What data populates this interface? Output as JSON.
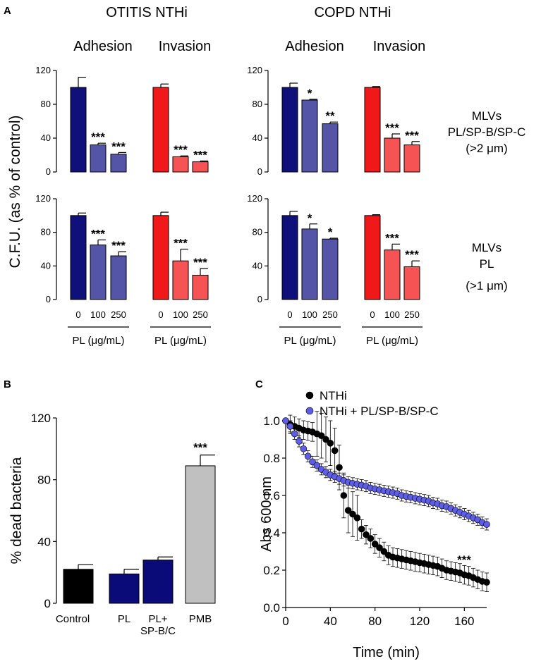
{
  "panel_a": {
    "label": "A",
    "ylabel": "C.F.U. (as % of control)",
    "strain_titles": [
      "OTITIS NTHi",
      "COPD NTHi"
    ],
    "group_titles": [
      "Adhesion",
      "Invasion"
    ],
    "dose_ticks": [
      "0",
      "100",
      "250"
    ],
    "dose_label": "PL (μg/mL)",
    "row_labels": [
      [
        "MLVs",
        "PL/SP-B/SP-C",
        "(>2 μm)"
      ],
      [
        "MLVs",
        "PL",
        "(>1 μm)"
      ]
    ],
    "y_ticks": [
      0,
      40,
      80,
      120
    ]
  },
  "panel_b": {
    "label": "B"
  },
  "panel_c": {
    "label": "C"
  },
  "colors": {
    "adhesion_control": "#10107a",
    "adhesion_treated": "#5555a8",
    "invasion_control": "#f01818",
    "invasion_treated": "#f65454",
    "pl_bar": "#0a0a78",
    "pmb_bar": "#c0c0c0",
    "black_bar": "#000000",
    "nthi": "#000000",
    "nthi_pl": "#5d5de8"
  },
  "chart_data": [
    {
      "type": "bar",
      "panel": "A",
      "strain": "OTITIS NTHi",
      "row": "MLVs PL/SP-B/SP-C (>2 μm)",
      "categories": [
        "0",
        "100",
        "250"
      ],
      "ylim": [
        0,
        120
      ],
      "series": [
        {
          "name": "Adhesion",
          "values": [
            100,
            32,
            21
          ],
          "errors": [
            12,
            2,
            2
          ],
          "significance": [
            "",
            "***",
            "***"
          ]
        },
        {
          "name": "Invasion",
          "values": [
            100,
            18,
            12
          ],
          "errors": [
            4,
            1,
            1
          ],
          "significance": [
            "",
            "***",
            "***"
          ]
        }
      ]
    },
    {
      "type": "bar",
      "panel": "A",
      "strain": "COPD NTHi",
      "row": "MLVs PL/SP-B/SP-C (>2 μm)",
      "categories": [
        "0",
        "100",
        "250"
      ],
      "ylim": [
        0,
        120
      ],
      "series": [
        {
          "name": "Adhesion",
          "values": [
            100,
            85,
            57
          ],
          "errors": [
            5,
            1,
            2
          ],
          "significance": [
            "",
            "*",
            "**"
          ]
        },
        {
          "name": "Invasion",
          "values": [
            100,
            40,
            32
          ],
          "errors": [
            1,
            5,
            4
          ],
          "significance": [
            "",
            "***",
            "***"
          ]
        }
      ]
    },
    {
      "type": "bar",
      "panel": "A",
      "strain": "OTITIS NTHi",
      "row": "MLVs PL (>1 μm)",
      "categories": [
        "0",
        "100",
        "250"
      ],
      "ylim": [
        0,
        120
      ],
      "series": [
        {
          "name": "Adhesion",
          "values": [
            100,
            65,
            52
          ],
          "errors": [
            3,
            6,
            5
          ],
          "significance": [
            "",
            "***",
            "***"
          ]
        },
        {
          "name": "Invasion",
          "values": [
            100,
            46,
            29
          ],
          "errors": [
            4,
            14,
            8
          ],
          "significance": [
            "",
            "***",
            "***"
          ]
        }
      ]
    },
    {
      "type": "bar",
      "panel": "A",
      "strain": "COPD NTHi",
      "row": "MLVs PL (>1 μm)",
      "categories": [
        "0",
        "100",
        "250"
      ],
      "ylim": [
        0,
        120
      ],
      "series": [
        {
          "name": "Adhesion",
          "values": [
            100,
            84,
            72
          ],
          "errors": [
            5,
            6,
            1
          ],
          "significance": [
            "",
            "*",
            "*"
          ]
        },
        {
          "name": "Invasion",
          "values": [
            100,
            59,
            39
          ],
          "errors": [
            1,
            7,
            7
          ],
          "significance": [
            "",
            "***",
            "***"
          ]
        }
      ]
    },
    {
      "type": "bar",
      "panel": "B",
      "categories": [
        "Control",
        "PL",
        "PL+\nSP-B/C",
        "PMB"
      ],
      "values": [
        22,
        19,
        28,
        89
      ],
      "errors": [
        3,
        3,
        2,
        7
      ],
      "significance": [
        "",
        "",
        "",
        "***"
      ],
      "ylabel": "% dead bacteria",
      "ylim": [
        0,
        120
      ],
      "yticks": [
        0,
        40,
        80,
        120
      ]
    },
    {
      "type": "scatter",
      "panel": "C",
      "xlabel": "Time (min)",
      "ylabel": "Abs 600 nm",
      "xlim": [
        0,
        180
      ],
      "ylim": [
        0,
        1.0
      ],
      "xticks": [
        0,
        40,
        80,
        120,
        160
      ],
      "yticks": [
        "0.0",
        "0.2",
        "0.4",
        "0.6",
        "0.8",
        "1.0"
      ],
      "annotation": "***",
      "series": [
        {
          "name": "NTHi",
          "points": [
            [
              0,
              1.0
            ],
            [
              4,
              0.98
            ],
            [
              8,
              0.97
            ],
            [
              12,
              0.96
            ],
            [
              16,
              0.95
            ],
            [
              20,
              0.945
            ],
            [
              24,
              0.94
            ],
            [
              28,
              0.93
            ],
            [
              32,
              0.92
            ],
            [
              36,
              0.9
            ],
            [
              40,
              0.88
            ],
            [
              44,
              0.84
            ],
            [
              48,
              0.75
            ],
            [
              52,
              0.6
            ],
            [
              56,
              0.52
            ],
            [
              60,
              0.5
            ],
            [
              64,
              0.48
            ],
            [
              68,
              0.42
            ],
            [
              72,
              0.39
            ],
            [
              76,
              0.37
            ],
            [
              80,
              0.34
            ],
            [
              84,
              0.32
            ],
            [
              88,
              0.3
            ],
            [
              92,
              0.28
            ],
            [
              96,
              0.27
            ],
            [
              100,
              0.265
            ],
            [
              104,
              0.26
            ],
            [
              108,
              0.255
            ],
            [
              112,
              0.25
            ],
            [
              116,
              0.245
            ],
            [
              120,
              0.24
            ],
            [
              124,
              0.235
            ],
            [
              128,
              0.23
            ],
            [
              132,
              0.225
            ],
            [
              136,
              0.22
            ],
            [
              140,
              0.21
            ],
            [
              144,
              0.2
            ],
            [
              148,
              0.195
            ],
            [
              152,
              0.19
            ],
            [
              156,
              0.185
            ],
            [
              160,
              0.175
            ],
            [
              164,
              0.17
            ],
            [
              168,
              0.16
            ],
            [
              172,
              0.15
            ],
            [
              176,
              0.14
            ],
            [
              180,
              0.135
            ]
          ],
          "error": 0.05
        },
        {
          "name": "NTHi + PL/SP-B/SP-C",
          "points": [
            [
              0,
              1.0
            ],
            [
              4,
              0.97
            ],
            [
              8,
              0.93
            ],
            [
              12,
              0.89
            ],
            [
              16,
              0.85
            ],
            [
              20,
              0.81
            ],
            [
              24,
              0.78
            ],
            [
              28,
              0.76
            ],
            [
              32,
              0.74
            ],
            [
              36,
              0.725
            ],
            [
              40,
              0.71
            ],
            [
              44,
              0.7
            ],
            [
              48,
              0.69
            ],
            [
              52,
              0.68
            ],
            [
              56,
              0.67
            ],
            [
              60,
              0.665
            ],
            [
              64,
              0.66
            ],
            [
              68,
              0.655
            ],
            [
              72,
              0.65
            ],
            [
              76,
              0.64
            ],
            [
              80,
              0.635
            ],
            [
              84,
              0.63
            ],
            [
              88,
              0.625
            ],
            [
              92,
              0.62
            ],
            [
              96,
              0.615
            ],
            [
              100,
              0.61
            ],
            [
              104,
              0.6
            ],
            [
              108,
              0.595
            ],
            [
              112,
              0.59
            ],
            [
              116,
              0.585
            ],
            [
              120,
              0.58
            ],
            [
              124,
              0.575
            ],
            [
              128,
              0.57
            ],
            [
              132,
              0.56
            ],
            [
              136,
              0.555
            ],
            [
              140,
              0.545
            ],
            [
              144,
              0.54
            ],
            [
              148,
              0.53
            ],
            [
              152,
              0.52
            ],
            [
              156,
              0.51
            ],
            [
              160,
              0.5
            ],
            [
              164,
              0.49
            ],
            [
              168,
              0.48
            ],
            [
              172,
              0.47
            ],
            [
              176,
              0.455
            ],
            [
              180,
              0.445
            ]
          ],
          "error": 0.03
        }
      ]
    }
  ]
}
